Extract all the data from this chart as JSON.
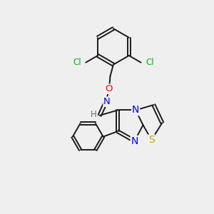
{
  "background_color": "#efefef",
  "bond_color": "#1a1a1a",
  "atom_colors": {
    "Cl": "#00bb00",
    "O": "#ff0000",
    "N": "#0000ee",
    "S": "#bbaa00",
    "H": "#607070",
    "C": "#1a1a1a"
  },
  "font_size": 9,
  "fig_size": [
    3.0,
    3.0
  ],
  "dpi": 100,
  "xlim": [
    0,
    10
  ],
  "ylim": [
    0,
    10
  ]
}
